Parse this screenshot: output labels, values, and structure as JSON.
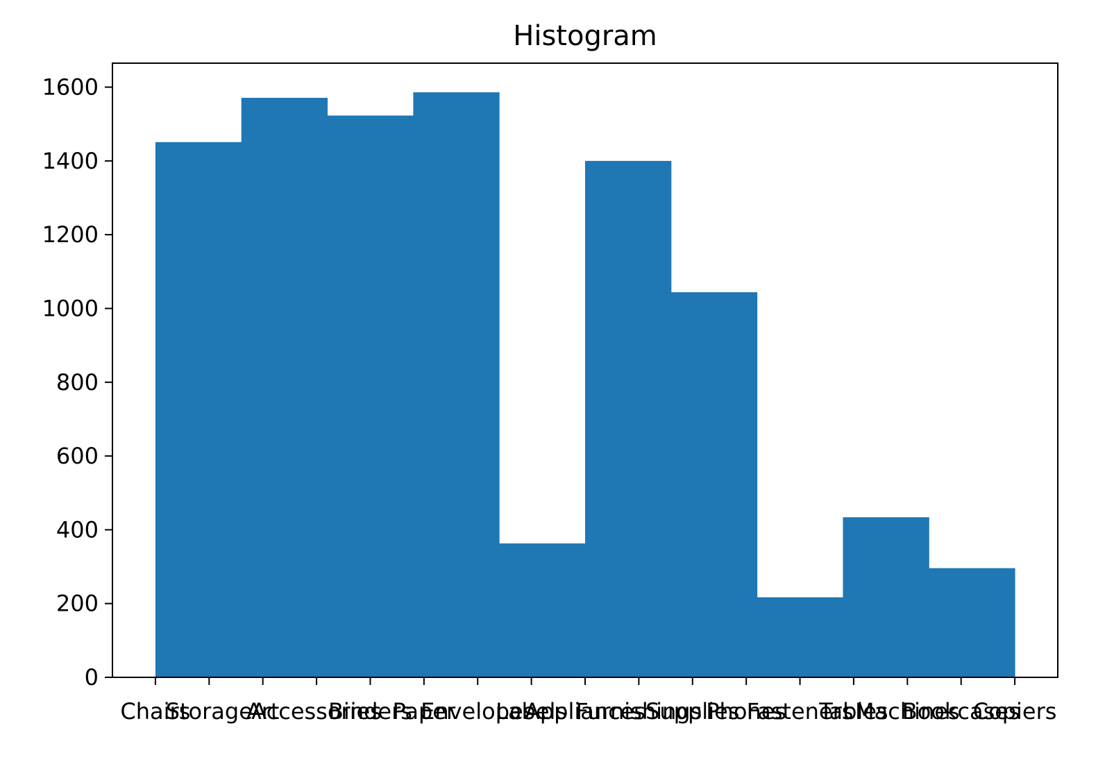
{
  "chart_data": {
    "type": "bar",
    "title": "Histogram",
    "xlabel": "",
    "ylabel": "",
    "x_tick_labels": [
      "Chairs",
      "Storage",
      "Art",
      "Accessories",
      "Binders",
      "Paper",
      "Envelopes",
      "Labels",
      "Appliances",
      "Furnishings",
      "Supplies",
      "Phones",
      "Fasteners",
      "Tables",
      "Machines",
      "Bookcases",
      "Copiers"
    ],
    "bins": [
      {
        "start": 0.0,
        "end": 1.6,
        "value": 1451
      },
      {
        "start": 1.6,
        "end": 3.2,
        "value": 1571
      },
      {
        "start": 3.2,
        "end": 4.8,
        "value": 1523
      },
      {
        "start": 4.8,
        "end": 6.4,
        "value": 1586
      },
      {
        "start": 6.4,
        "end": 8.0,
        "value": 363
      },
      {
        "start": 8.0,
        "end": 9.6,
        "value": 1400
      },
      {
        "start": 9.6,
        "end": 11.2,
        "value": 1044
      },
      {
        "start": 11.2,
        "end": 12.8,
        "value": 217
      },
      {
        "start": 12.8,
        "end": 14.4,
        "value": 434
      },
      {
        "start": 14.4,
        "end": 16.0,
        "value": 296
      }
    ],
    "y_ticks": [
      0,
      200,
      400,
      600,
      800,
      1000,
      1200,
      1400,
      1600
    ],
    "xlim": [
      -0.8,
      16.8
    ],
    "ylim": [
      0,
      1665
    ],
    "bar_color": "#1f77b4",
    "grid": false,
    "legend": "none"
  }
}
